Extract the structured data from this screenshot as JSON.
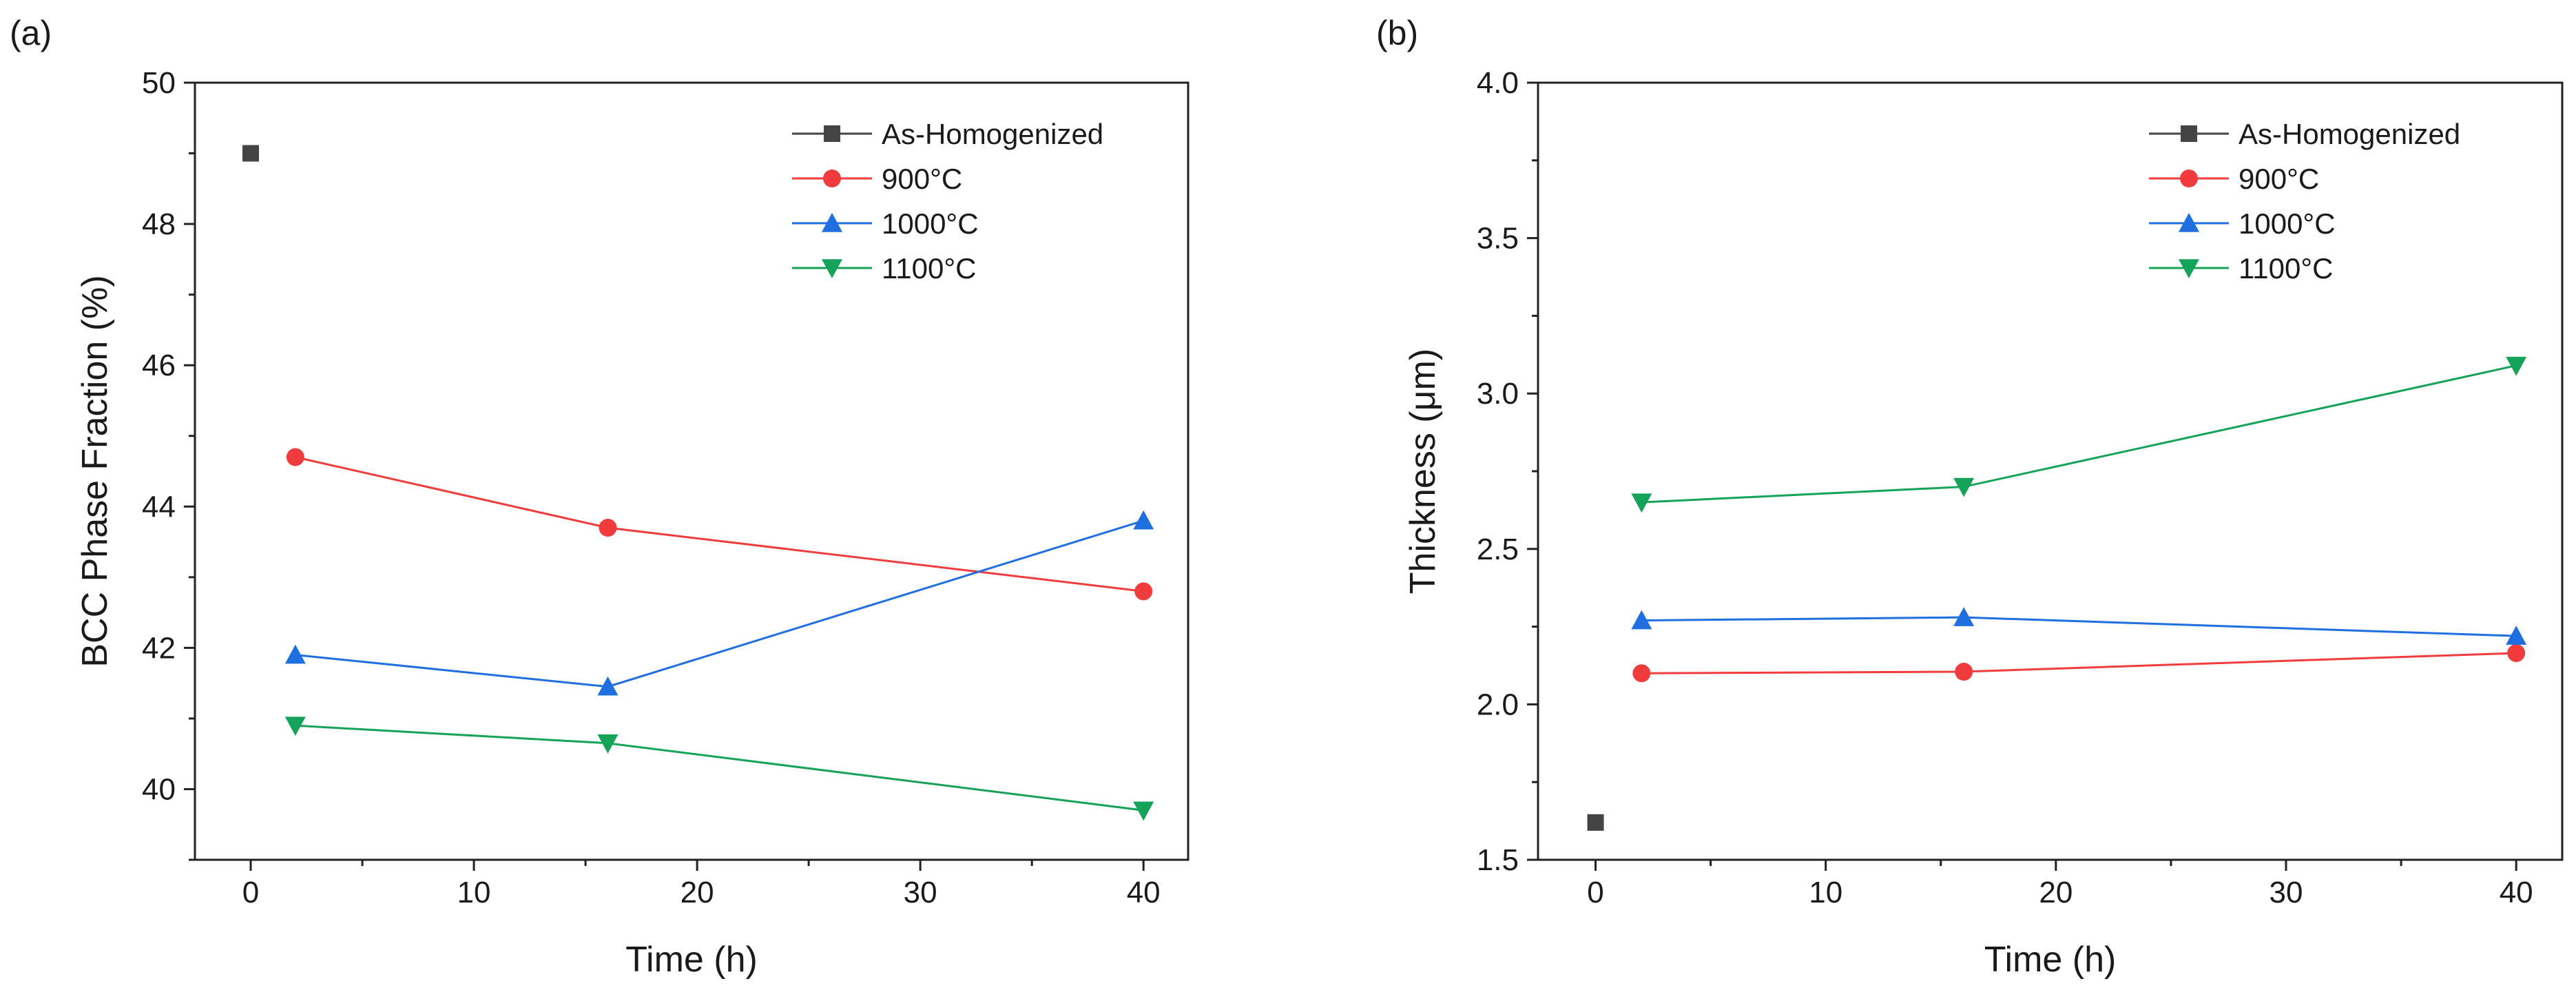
{
  "chart_data": [
    {
      "type": "line",
      "panel_label": "(a)",
      "title": "",
      "xlabel": "Time (h)",
      "ylabel": "BCC Phase Fraction (%)",
      "xlim": [
        -2.5,
        42
      ],
      "ylim": [
        39,
        50
      ],
      "xticks": [
        0,
        10,
        20,
        30,
        40
      ],
      "yticks": [
        40,
        42,
        44,
        46,
        48,
        50
      ],
      "xtick_labels": [
        "0",
        "10",
        "20",
        "30",
        "40"
      ],
      "ytick_labels": [
        "40",
        "42",
        "44",
        "46",
        "48",
        "50"
      ],
      "grid": false,
      "legend_position": "top-right",
      "series": [
        {
          "name": "As-Homogenized",
          "color": "#444444",
          "marker": "square",
          "x": [
            0
          ],
          "y": [
            49.0
          ]
        },
        {
          "name": "900°C",
          "color": "#f03c3c",
          "marker": "circle",
          "x": [
            2,
            16,
            40
          ],
          "y": [
            44.7,
            43.7,
            42.8
          ]
        },
        {
          "name": "1000°C",
          "color": "#1f6fe0",
          "marker": "triangle-up",
          "x": [
            2,
            16,
            40
          ],
          "y": [
            41.9,
            41.45,
            43.8
          ]
        },
        {
          "name": "1100°C",
          "color": "#15a35a",
          "marker": "triangle-down",
          "x": [
            2,
            16,
            40
          ],
          "y": [
            40.9,
            40.65,
            39.7
          ]
        }
      ]
    },
    {
      "type": "line",
      "panel_label": "(b)",
      "title": "",
      "xlabel": "Time (h)",
      "ylabel": "Thickness (μm)",
      "xlim": [
        -2.5,
        42
      ],
      "ylim": [
        1.5,
        4.0
      ],
      "xticks": [
        0,
        10,
        20,
        30,
        40
      ],
      "yticks": [
        1.5,
        2.0,
        2.5,
        3.0,
        3.5,
        4.0
      ],
      "xtick_labels": [
        "0",
        "10",
        "20",
        "30",
        "40"
      ],
      "ytick_labels": [
        "1.5",
        "2.0",
        "2.5",
        "3.0",
        "3.5",
        "4.0"
      ],
      "grid": false,
      "legend_position": "top-right",
      "series": [
        {
          "name": "As-Homogenized",
          "color": "#444444",
          "marker": "square",
          "x": [
            0
          ],
          "y": [
            1.62
          ]
        },
        {
          "name": "900°C",
          "color": "#f03c3c",
          "marker": "circle",
          "x": [
            2,
            16,
            40
          ],
          "y": [
            2.1,
            2.105,
            2.165
          ]
        },
        {
          "name": "1000°C",
          "color": "#1f6fe0",
          "marker": "triangle-up",
          "x": [
            2,
            16,
            40
          ],
          "y": [
            2.27,
            2.28,
            2.22
          ]
        },
        {
          "name": "1100°C",
          "color": "#15a35a",
          "marker": "triangle-down",
          "x": [
            2,
            16,
            40
          ],
          "y": [
            2.65,
            2.7,
            3.09
          ]
        }
      ]
    }
  ]
}
